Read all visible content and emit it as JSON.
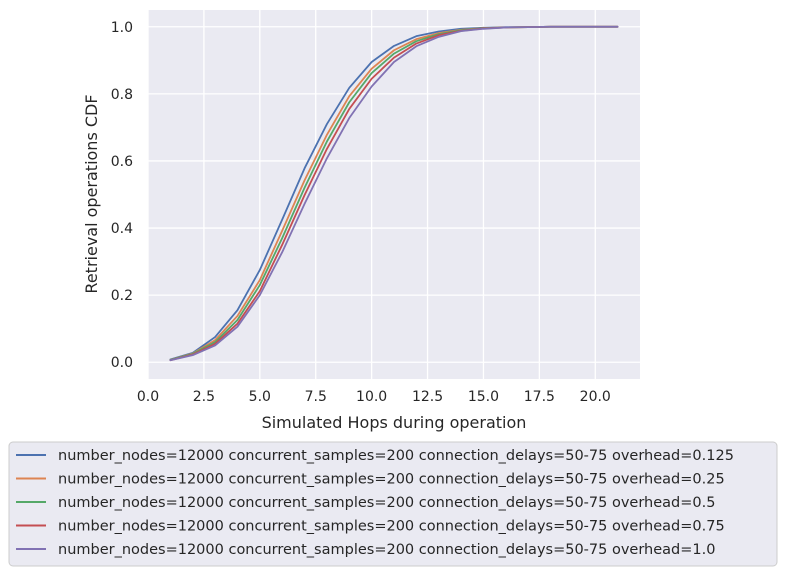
{
  "chart_data": {
    "type": "line",
    "xlabel": "Simulated Hops during operation",
    "ylabel": "Retrieval operations CDF",
    "xlim": [
      0,
      22
    ],
    "ylim": [
      -0.05,
      1.05
    ],
    "xticks": [
      "0.0",
      "2.5",
      "5.0",
      "7.5",
      "10.0",
      "12.5",
      "15.0",
      "17.5",
      "20.0"
    ],
    "yticks": [
      "0.0",
      "0.2",
      "0.4",
      "0.6",
      "0.8",
      "1.0"
    ],
    "grid": true,
    "legend_position": "below",
    "x": [
      1,
      2,
      3,
      4,
      5,
      6,
      7,
      8,
      9,
      10,
      11,
      12,
      13,
      14,
      15,
      16,
      17,
      18,
      19,
      20,
      21
    ],
    "series": [
      {
        "name": "number_nodes=12000 concurrent_samples=200 connection_delays=50-75 overhead=0.125",
        "color": "#4c72b0",
        "values": [
          0.008,
          0.028,
          0.075,
          0.155,
          0.275,
          0.425,
          0.578,
          0.71,
          0.818,
          0.895,
          0.943,
          0.972,
          0.986,
          0.994,
          0.997,
          0.999,
          0.999,
          1.0,
          1.0,
          1.0,
          1.0
        ]
      },
      {
        "name": "number_nodes=12000 concurrent_samples=200 connection_delays=50-75 overhead=0.25",
        "color": "#dd8452",
        "values": [
          0.007,
          0.026,
          0.066,
          0.138,
          0.245,
          0.392,
          0.542,
          0.678,
          0.793,
          0.875,
          0.93,
          0.963,
          0.981,
          0.991,
          0.996,
          0.998,
          0.999,
          1.0,
          1.0,
          1.0,
          1.0
        ]
      },
      {
        "name": "number_nodes=12000 concurrent_samples=200 connection_delays=50-75 overhead=0.5",
        "color": "#55a868",
        "values": [
          0.007,
          0.025,
          0.06,
          0.126,
          0.23,
          0.37,
          0.52,
          0.658,
          0.775,
          0.862,
          0.92,
          0.957,
          0.978,
          0.99,
          0.996,
          0.998,
          0.999,
          1.0,
          1.0,
          1.0,
          1.0
        ]
      },
      {
        "name": "number_nodes=12000 concurrent_samples=200 connection_delays=50-75 overhead=0.75",
        "color": "#c44e52",
        "values": [
          0.006,
          0.023,
          0.055,
          0.115,
          0.212,
          0.35,
          0.498,
          0.636,
          0.755,
          0.845,
          0.908,
          0.95,
          0.975,
          0.988,
          0.995,
          0.998,
          0.999,
          1.0,
          1.0,
          1.0,
          1.0
        ]
      },
      {
        "name": "number_nodes=12000 concurrent_samples=200 connection_delays=50-75 overhead=1.0",
        "color": "#8172b3",
        "values": [
          0.006,
          0.021,
          0.05,
          0.106,
          0.2,
          0.328,
          0.472,
          0.608,
          0.728,
          0.822,
          0.895,
          0.942,
          0.97,
          0.987,
          0.994,
          0.998,
          0.999,
          1.0,
          1.0,
          1.0,
          1.0
        ]
      }
    ]
  }
}
